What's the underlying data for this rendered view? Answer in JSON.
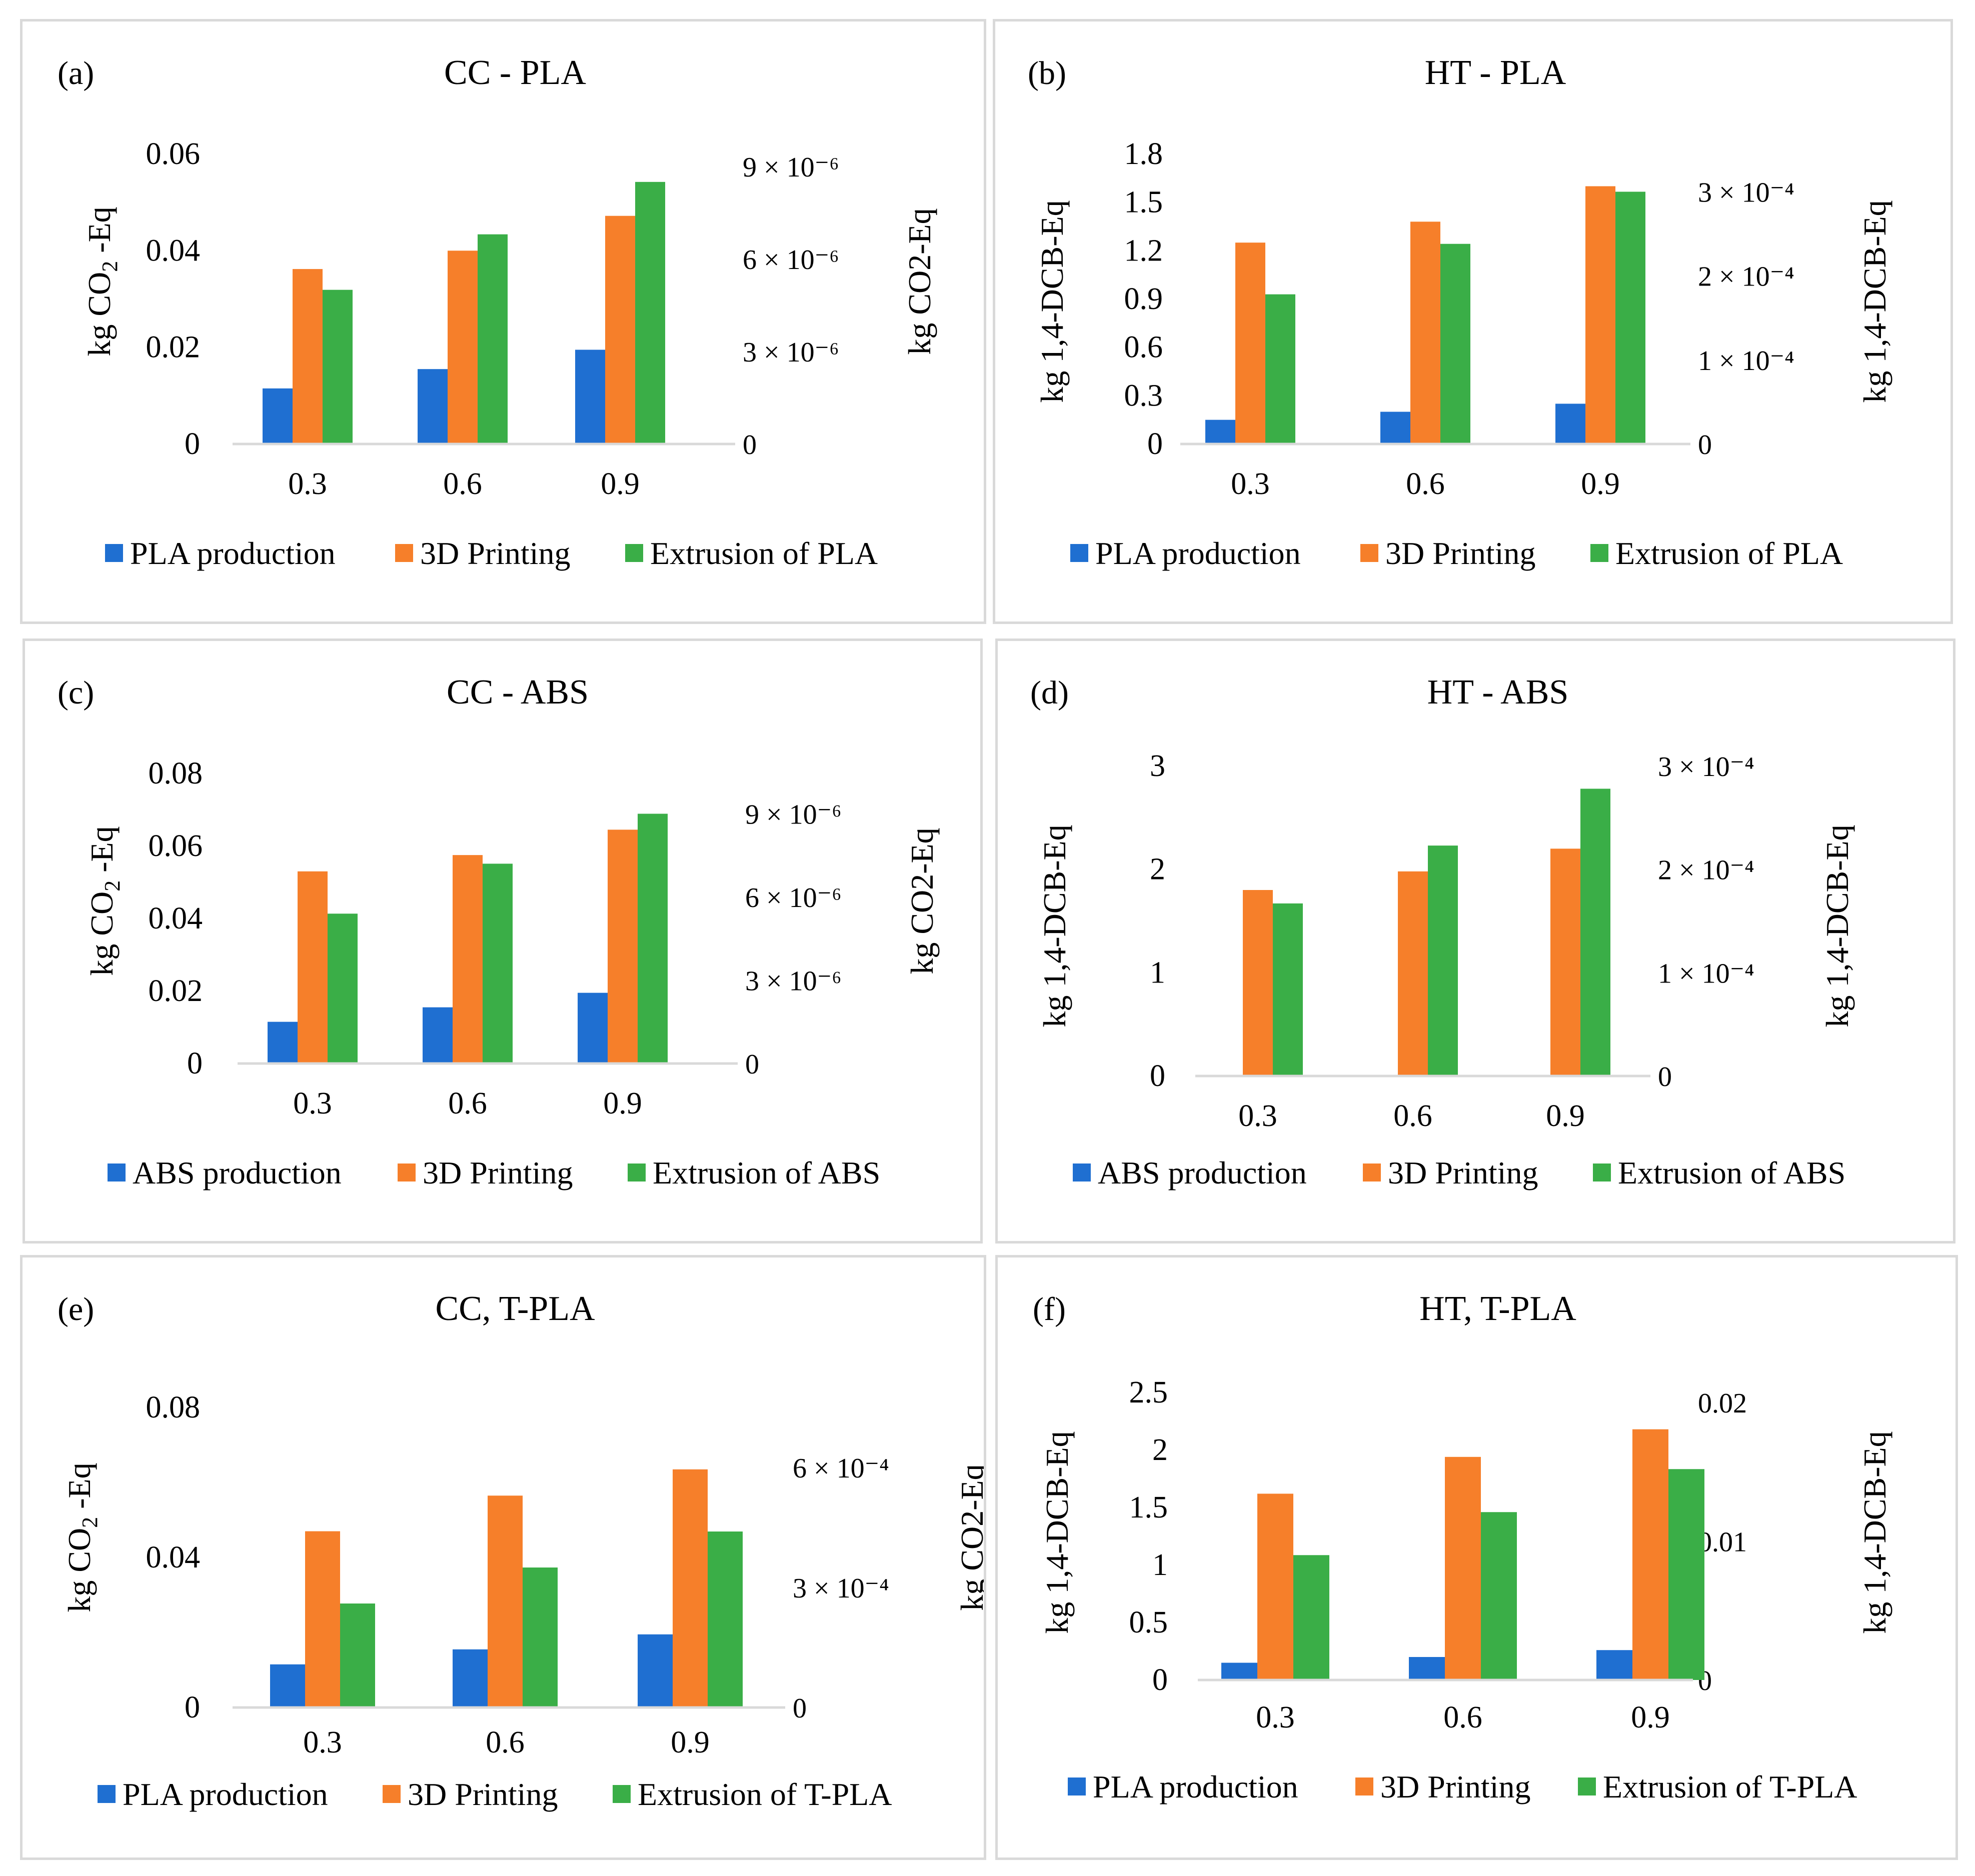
{
  "colors": {
    "blue": "#1f6fd1",
    "orange": "#f67f2a",
    "green": "#3aae47",
    "axis": "#d9d9d9"
  },
  "chart_data": [
    {
      "type": "bar",
      "panel_label": "(a)",
      "title": "CC - PLA",
      "categories": [
        "0.3",
        "0.6",
        "0.9"
      ],
      "series": [
        {
          "name": "PLA production",
          "axis": "left",
          "values": [
            0.0115,
            0.0155,
            0.0195
          ]
        },
        {
          "name": "3D Printing",
          "axis": "left",
          "values": [
            0.0362,
            0.04,
            0.0472
          ]
        },
        {
          "name": "Extrusion of PLA",
          "axis": "right",
          "values": [
            5e-06,
            6.8e-06,
            8.5e-06
          ]
        }
      ],
      "y_left": {
        "label_main": "kg CO",
        "label_sub": "2",
        "label_tail": " -Eq",
        "ticks": [
          "0",
          "0.02",
          "0.04",
          "0.06"
        ],
        "tick_values": [
          0,
          0.02,
          0.04,
          0.06
        ],
        "ylim": [
          0,
          0.06
        ]
      },
      "y_right": {
        "label": "kg CO2-Eq",
        "ticks": [
          "0",
          "3 × 10⁻⁶",
          "6 × 10⁻⁶",
          "9 × 10⁻⁶"
        ],
        "tick_values": [
          0,
          3e-06,
          6e-06,
          9e-06
        ],
        "ylim": [
          0,
          9e-06
        ]
      }
    },
    {
      "type": "bar",
      "panel_label": "(b)",
      "title": "HT - PLA",
      "categories": [
        "0.3",
        "0.6",
        "0.9"
      ],
      "series": [
        {
          "name": "PLA production",
          "axis": "left",
          "values": [
            0.15,
            0.2,
            0.25
          ]
        },
        {
          "name": "3D Printing",
          "axis": "left",
          "values": [
            1.25,
            1.38,
            1.6
          ]
        },
        {
          "name": "Extrusion of PLA",
          "axis": "right",
          "values": [
            0.000178,
            0.000238,
            0.0003
          ]
        }
      ],
      "y_left": {
        "label_main": "kg 1,4-DCB-Eq",
        "label_sub": "",
        "label_tail": "",
        "ticks": [
          "0",
          "0.3",
          "0.6",
          "0.9",
          "1.2",
          "1.5",
          "1.8"
        ],
        "tick_values": [
          0,
          0.3,
          0.6,
          0.9,
          1.2,
          1.5,
          1.8
        ],
        "ylim": [
          0,
          1.8
        ]
      },
      "y_right": {
        "label": "kg 1,4-DCB-Eq",
        "ticks": [
          "0",
          "1 × 10⁻⁴",
          "2 × 10⁻⁴",
          "3 × 10⁻⁴"
        ],
        "tick_values": [
          0,
          0.0001,
          0.0002,
          0.0003
        ],
        "ylim": [
          0,
          0.00033
        ]
      }
    },
    {
      "type": "bar",
      "panel_label": "(c)",
      "title": "CC - ABS",
      "categories": [
        "0.3",
        "0.6",
        "0.9"
      ],
      "series": [
        {
          "name": "ABS production",
          "axis": "left",
          "values": [
            0.0115,
            0.0155,
            0.0195
          ]
        },
        {
          "name": "3D Printing",
          "axis": "left",
          "values": [
            0.053,
            0.0575,
            0.0645
          ]
        },
        {
          "name": "Extrusion of ABS",
          "axis": "right",
          "values": [
            5.4e-06,
            7.2e-06,
            9e-06
          ]
        }
      ],
      "y_left": {
        "label_main": "kg CO",
        "label_sub": "2",
        "label_tail": " -Eq",
        "ticks": [
          "0",
          "0.02",
          "0.04",
          "0.06",
          "0.08"
        ],
        "tick_values": [
          0,
          0.02,
          0.04,
          0.06,
          0.08
        ],
        "ylim": [
          0,
          0.08
        ]
      },
      "y_right": {
        "label": "kg CO2-Eq",
        "ticks": [
          "0",
          "3 × 10⁻⁶",
          "6 × 10⁻⁶",
          "9 × 10⁻⁶"
        ],
        "tick_values": [
          0,
          3e-06,
          6e-06,
          9e-06
        ],
        "ylim": [
          0,
          1e-05
        ]
      }
    },
    {
      "type": "bar",
      "panel_label": "(d)",
      "title": "HT - ABS",
      "categories": [
        "0.3",
        "0.6",
        "0.9"
      ],
      "series": [
        {
          "name": "ABS production",
          "axis": "left",
          "values": [
            0.005,
            0.008,
            0.012
          ]
        },
        {
          "name": "3D Printing",
          "axis": "left",
          "values": [
            1.8,
            1.98,
            2.2
          ]
        },
        {
          "name": "Extrusion of ABS",
          "axis": "right",
          "values": [
            0.000167,
            0.000223,
            0.000278
          ]
        }
      ],
      "y_left": {
        "label_main": "kg 1,4-DCB-Eq",
        "label_sub": "",
        "label_tail": "",
        "ticks": [
          "0",
          "1",
          "2",
          "3"
        ],
        "tick_values": [
          0,
          1,
          2,
          3
        ],
        "ylim": [
          0,
          3
        ]
      },
      "y_right": {
        "label": "kg 1,4-DCB-Eq",
        "ticks": [
          "0",
          "1 × 10⁻⁴",
          "2 × 10⁻⁴",
          "3 × 10⁻⁴"
        ],
        "tick_values": [
          0,
          0.0001,
          0.0002,
          0.0003
        ],
        "ylim": [
          0,
          0.0003
        ]
      }
    },
    {
      "type": "bar",
      "panel_label": "(e)",
      "title": "CC, T-PLA",
      "categories": [
        "0.3",
        "0.6",
        "0.9"
      ],
      "series": [
        {
          "name": "PLA production",
          "axis": "left",
          "values": [
            0.0115,
            0.0155,
            0.0195
          ]
        },
        {
          "name": "3D Printing",
          "axis": "left",
          "values": [
            0.047,
            0.0565,
            0.0635
          ]
        },
        {
          "name": "Extrusion of T-PLA",
          "axis": "right",
          "values": [
            0.00026,
            0.00035,
            0.00044
          ]
        }
      ],
      "y_left": {
        "label_main": "kg CO",
        "label_sub": "2",
        "label_tail": " -Eq",
        "ticks": [
          "0",
          "0.04",
          "0.08"
        ],
        "tick_values": [
          0,
          0.04,
          0.08
        ],
        "ylim": [
          0,
          0.08
        ]
      },
      "y_right": {
        "label": "kg CO2-Eq",
        "ticks": [
          "0",
          "3 × 10⁻⁴",
          "6 × 10⁻⁴"
        ],
        "tick_values": [
          0,
          0.0003,
          0.0006
        ],
        "ylim": [
          0,
          0.00075
        ]
      }
    },
    {
      "type": "bar",
      "panel_label": "(f)",
      "title": "HT, T-PLA",
      "categories": [
        "0.3",
        "0.6",
        "0.9"
      ],
      "series": [
        {
          "name": "PLA production",
          "axis": "left",
          "values": [
            0.15,
            0.2,
            0.26
          ]
        },
        {
          "name": "3D Printing",
          "axis": "left",
          "values": [
            1.62,
            1.94,
            2.18
          ]
        },
        {
          "name": "Extrusion of T-PLA",
          "axis": "right",
          "values": [
            0.009,
            0.0121,
            0.0152
          ]
        }
      ],
      "y_left": {
        "label_main": "kg 1,4-DCB-Eq",
        "label_sub": "",
        "label_tail": "",
        "ticks": [
          "0",
          "0.5",
          "1",
          "1.5",
          "2",
          "2.5"
        ],
        "tick_values": [
          0,
          0.5,
          1,
          1.5,
          2,
          2.5
        ],
        "ylim": [
          0,
          2.5
        ]
      },
      "y_right": {
        "label": "kg 1,4-DCB-Eq",
        "ticks": [
          "0",
          "0.01",
          "0.02"
        ],
        "tick_values": [
          0,
          0.01,
          0.02
        ],
        "ylim": [
          0,
          0.02
        ]
      }
    }
  ]
}
